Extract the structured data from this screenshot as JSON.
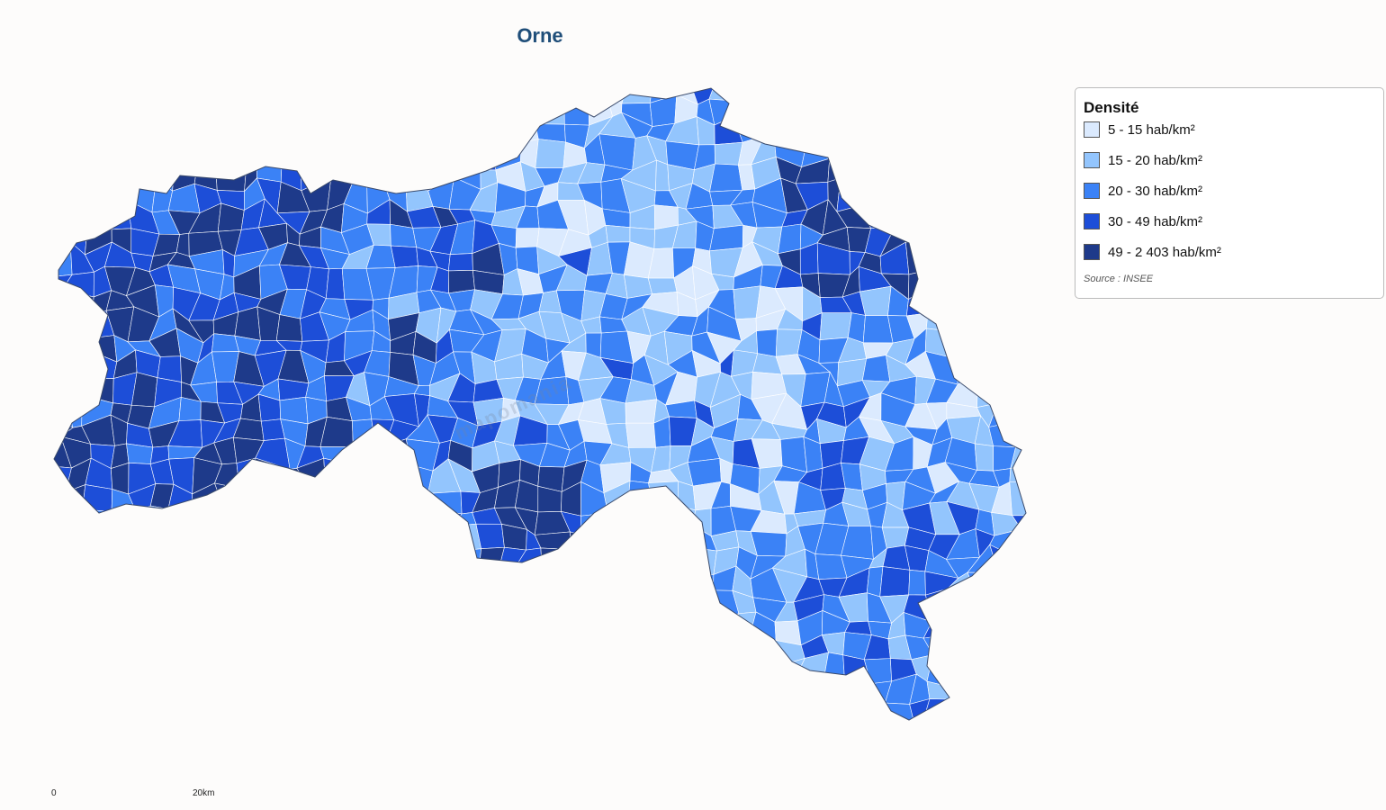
{
  "title": "Orne",
  "legend": {
    "title": "Densité",
    "items": [
      {
        "label": "5 - 15 hab/km²",
        "color": "#dbeafe"
      },
      {
        "label": "15 - 20 hab/km²",
        "color": "#93c5fd"
      },
      {
        "label": "20 - 30 hab/km²",
        "color": "#3b82f6"
      },
      {
        "label": "30 - 49 hab/km²",
        "color": "#1d4ed8"
      },
      {
        "label": "49 - 2 403 hab/km²",
        "color": "#1e3a8a"
      }
    ],
    "source": "Source : INSEE"
  },
  "scale": {
    "start": "0",
    "end": "20km"
  },
  "watermark": "mapomania"
}
